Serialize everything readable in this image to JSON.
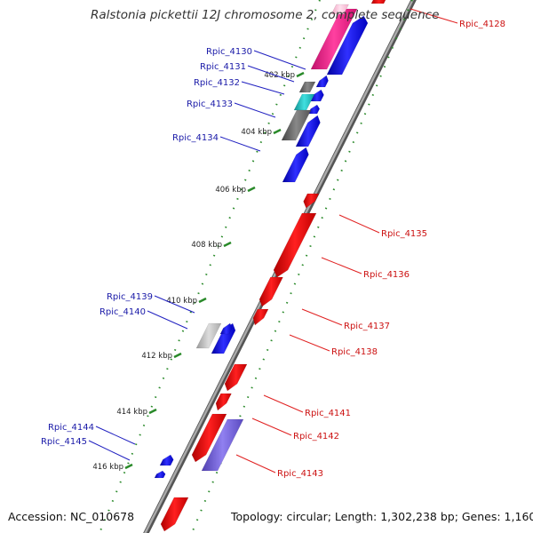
{
  "title": "Ralstonia pickettii 12J chromosome 2, complete sequence",
  "footer": {
    "accession": "Accession: NC_010678",
    "summary": "Topology: circular; Length: 1,302,238 bp; Genes: 1,160"
  },
  "colors": {
    "forward_gene": "#1010e0",
    "reverse_gene": "#e01010",
    "backbone": "#888888",
    "tick": "#2a8a2a",
    "left_label": "#1a1aa8",
    "right_label": "#cc1111"
  },
  "ticks": [
    "402 kbp",
    "404 kbp",
    "406 kbp",
    "408 kbp",
    "410 kbp",
    "412 kbp",
    "414 kbp",
    "416 kbp"
  ],
  "left_labels": [
    "Rpic_4130",
    "Rpic_4131",
    "Rpic_4132",
    "Rpic_4133",
    "Rpic_4134",
    "Rpic_4139",
    "Rpic_4140",
    "Rpic_4144",
    "Rpic_4145"
  ],
  "right_labels": [
    "Rpic_4128",
    "Rpic_4135",
    "Rpic_4136",
    "Rpic_4137",
    "Rpic_4138",
    "Rpic_4141",
    "Rpic_4142",
    "Rpic_4143"
  ]
}
